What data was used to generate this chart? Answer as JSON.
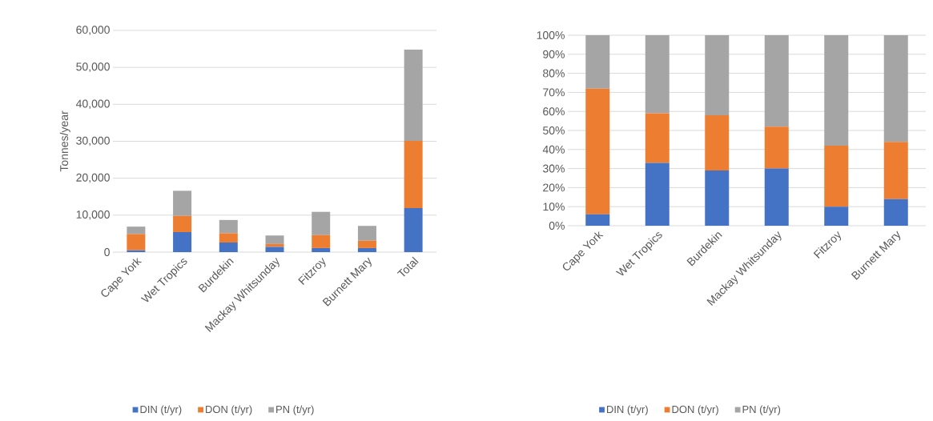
{
  "chart_data": [
    {
      "type": "bar",
      "stacked": true,
      "ylabel": "Tonnes/year",
      "grid": "y",
      "legend": "bottom",
      "categories": [
        "Cape York",
        "Wet Tropics",
        "Burdekin",
        "Mackay Whitsunday",
        "Fitzroy",
        "Burnett Mary",
        "Total"
      ],
      "ylim": [
        0,
        60000
      ],
      "yticks": [
        {
          "value": 0,
          "label": "0"
        },
        {
          "value": 10000,
          "label": "10,000"
        },
        {
          "value": 20000,
          "label": "20,000"
        },
        {
          "value": 30000,
          "label": "30,000"
        },
        {
          "value": 40000,
          "label": "40,000"
        },
        {
          "value": 50000,
          "label": "50,000"
        },
        {
          "value": 60000,
          "label": "60,000"
        }
      ],
      "series": [
        {
          "name": "DIN (t/yr)",
          "color": "#4472c4",
          "values": [
            500,
            5400,
            2600,
            1400,
            1100,
            1100,
            11900
          ]
        },
        {
          "name": "DON (t/yr)",
          "color": "#ed7d31",
          "values": [
            4400,
            4400,
            2500,
            800,
            3500,
            2000,
            18200
          ]
        },
        {
          "name": "PN (t/yr)",
          "color": "#a5a5a5",
          "values": [
            2000,
            6800,
            3600,
            2300,
            6300,
            4000,
            24700
          ]
        }
      ]
    },
    {
      "type": "bar",
      "stacked": true,
      "grid": "y",
      "legend": "bottom",
      "categories": [
        "Cape York",
        "Wet Tropics",
        "Burdekin",
        "Mackay Whitsunday",
        "Fitzroy",
        "Burnett Mary"
      ],
      "ylim": [
        0,
        100
      ],
      "yticks": [
        {
          "value": 0,
          "label": "0%"
        },
        {
          "value": 10,
          "label": "10%"
        },
        {
          "value": 20,
          "label": "20%"
        },
        {
          "value": 30,
          "label": "30%"
        },
        {
          "value": 40,
          "label": "40%"
        },
        {
          "value": 50,
          "label": "50%"
        },
        {
          "value": 60,
          "label": "60%"
        },
        {
          "value": 70,
          "label": "70%"
        },
        {
          "value": 80,
          "label": "80%"
        },
        {
          "value": 90,
          "label": "90%"
        },
        {
          "value": 100,
          "label": "100%"
        }
      ],
      "series": [
        {
          "name": "DIN (t/yr)",
          "color": "#4472c4",
          "values": [
            6,
            33,
            29,
            30,
            10,
            14
          ]
        },
        {
          "name": "DON (t/yr)",
          "color": "#ed7d31",
          "values": [
            66,
            26,
            29,
            22,
            32,
            30
          ]
        },
        {
          "name": "PN (t/yr)",
          "color": "#a5a5a5",
          "values": [
            28,
            41,
            42,
            48,
            58,
            56
          ]
        }
      ]
    }
  ]
}
